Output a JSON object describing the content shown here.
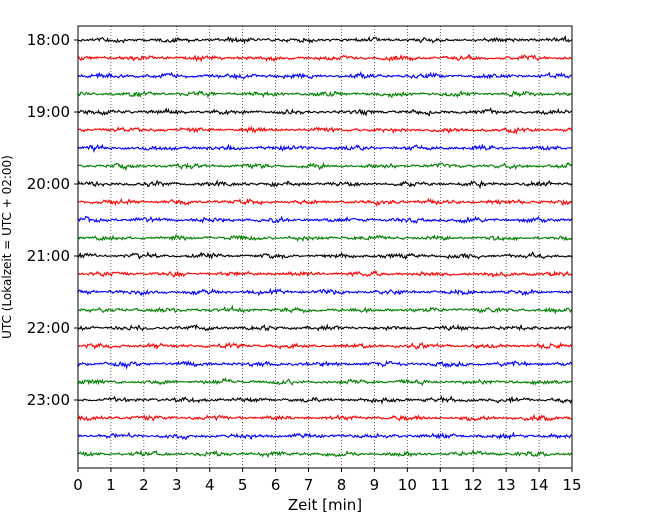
{
  "chart_data": {
    "type": "line",
    "title": "",
    "xlabel": "Zeit  [min]",
    "ylabel": "UTC (Lokalzeit = UTC + 02:00)",
    "xlim": [
      0,
      15
    ],
    "x_ticks": [
      "0",
      "1",
      "2",
      "3",
      "4",
      "5",
      "6",
      "7",
      "8",
      "9",
      "10",
      "11",
      "12",
      "13",
      "14",
      "15"
    ],
    "y_tick_labels": [
      "18:00",
      "19:00",
      "20:00",
      "21:00",
      "22:00",
      "23:00"
    ],
    "grid": "x-dotted",
    "trace_minutes": 15,
    "traces_per_hour": 4,
    "trace_starts": [
      "18:00",
      "18:15",
      "18:30",
      "18:45",
      "19:00",
      "19:15",
      "19:30",
      "19:45",
      "20:00",
      "20:15",
      "20:30",
      "20:45",
      "21:00",
      "21:15",
      "21:30",
      "21:45",
      "22:00",
      "22:15",
      "22:30",
      "22:45",
      "23:00",
      "23:15",
      "23:30",
      "23:45"
    ],
    "colors": [
      "#000000",
      "#ff0000",
      "#0000ff",
      "#008000"
    ]
  }
}
